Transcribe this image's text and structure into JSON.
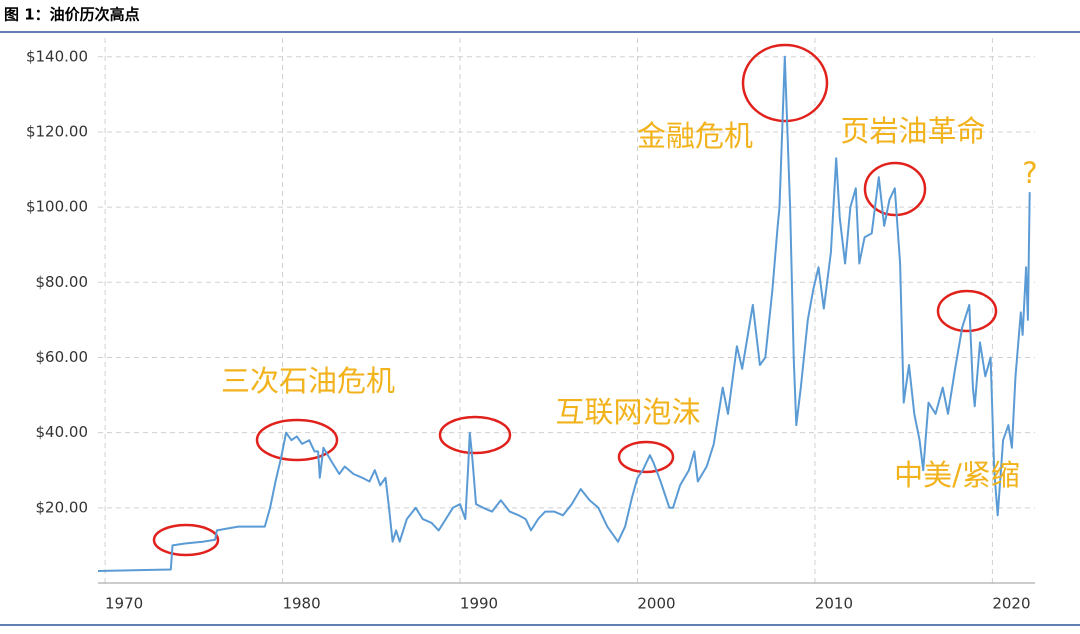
{
  "chart_data": {
    "type": "line",
    "title": "图 1：油价历次高点",
    "x": [
      1969.6,
      1973.7,
      1973.8,
      1974.5,
      1975.5,
      1976.2,
      1976.3,
      1977.5,
      1979.0,
      1979.3,
      1979.6,
      1979.9,
      1980.2,
      1980.5,
      1980.8,
      1981.1,
      1981.5,
      1981.8,
      1982.0,
      1982.1,
      1982.3,
      1982.8,
      1983.2,
      1983.5,
      1984.0,
      1984.5,
      1984.9,
      1985.2,
      1985.5,
      1985.8,
      1986.0,
      1986.2,
      1986.4,
      1986.6,
      1987.0,
      1987.5,
      1987.9,
      1988.4,
      1988.8,
      1989.2,
      1989.6,
      1990.0,
      1990.3,
      1990.45,
      1990.55,
      1990.7,
      1990.9,
      1991.3,
      1991.8,
      1992.3,
      1992.8,
      1993.3,
      1993.7,
      1994.0,
      1994.4,
      1994.8,
      1995.3,
      1995.8,
      1996.3,
      1996.8,
      1997.3,
      1997.8,
      1998.3,
      1998.9,
      1999.3,
      1999.7,
      2000.0,
      2000.3,
      2000.7,
      2000.9,
      2001.3,
      2001.8,
      2002.0,
      2002.4,
      2002.9,
      2003.2,
      2003.4,
      2003.9,
      2004.3,
      2004.8,
      2005.1,
      2005.6,
      2005.9,
      2006.5,
      2006.9,
      2007.2,
      2007.6,
      2007.9,
      2008.0,
      2008.3,
      2008.6,
      2008.8,
      2008.95,
      2009.2,
      2009.6,
      2009.9,
      2010.2,
      2010.5,
      2010.9,
      2011.2,
      2011.4,
      2011.7,
      2012.0,
      2012.3,
      2012.5,
      2012.8,
      2013.2,
      2013.6,
      2013.9,
      2014.2,
      2014.5,
      2014.8,
      2015.0,
      2015.3,
      2015.6,
      2015.9,
      2016.1,
      2016.4,
      2016.8,
      2017.2,
      2017.5,
      2017.9,
      2018.3,
      2018.7,
      2018.9,
      2019.0,
      2019.3,
      2019.6,
      2019.9,
      2020.1,
      2020.3,
      2020.6,
      2020.9,
      2021.1,
      2021.3,
      2021.6,
      2021.7,
      2021.9,
      2022.0,
      2022.1
    ],
    "values": [
      3.2,
      3.6,
      10,
      10.5,
      11,
      11.5,
      14,
      15,
      15,
      20,
      27,
      33,
      40,
      38,
      39,
      37,
      38,
      35,
      35,
      28,
      36,
      32,
      29,
      31,
      29,
      28,
      27,
      30,
      26,
      28,
      20,
      11,
      14,
      11,
      17,
      20,
      17,
      16,
      14,
      17,
      20,
      21,
      17,
      30,
      40,
      33,
      21,
      20,
      19,
      22,
      19,
      18,
      17,
      14,
      17,
      19,
      19,
      18,
      21,
      25,
      22,
      20,
      15,
      11,
      15,
      23,
      28,
      30,
      34,
      32,
      27,
      20,
      20,
      26,
      30,
      35,
      27,
      31,
      37,
      52,
      45,
      63,
      57,
      74,
      58,
      60,
      78,
      95,
      100,
      140,
      100,
      60,
      42,
      52,
      70,
      78,
      84,
      73,
      88,
      113,
      97,
      85,
      100,
      105,
      85,
      92,
      93,
      108,
      95,
      102,
      105,
      85,
      48,
      58,
      45,
      38,
      30,
      48,
      45,
      52,
      45,
      57,
      68,
      74,
      52,
      47,
      64,
      55,
      60,
      30,
      18,
      38,
      42,
      36,
      55,
      72,
      66,
      84,
      70,
      104
    ],
    "color": "#5b9bd5",
    "xlim": [
      1969.6,
      2022.4
    ],
    "xticks": [
      1970,
      1980,
      1990,
      2000,
      2010,
      2020
    ],
    "ylim": [
      0,
      145
    ],
    "yticks": [
      {
        "value": 20,
        "label": "$20.00"
      },
      {
        "value": 40,
        "label": "$40.00"
      },
      {
        "value": 60,
        "label": "$60.00"
      },
      {
        "value": 80,
        "label": "$80.00"
      },
      {
        "value": 100,
        "label": "$100.00"
      },
      {
        "value": 120,
        "label": "$120.00"
      },
      {
        "value": 140,
        "label": "$140.00"
      }
    ],
    "grid": true,
    "annotations": [
      "三次石油危机",
      "互联网泡沫",
      "金融危机",
      "页岩油革命",
      "中美/紧缩",
      "?"
    ]
  }
}
